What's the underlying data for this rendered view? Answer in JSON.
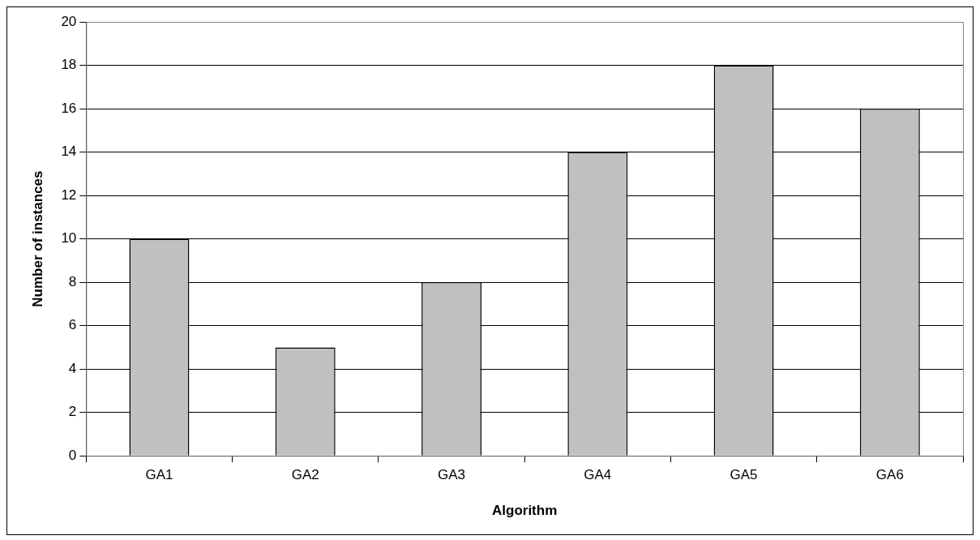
{
  "chart_data": {
    "type": "bar",
    "xlabel": "Algorithm",
    "ylabel": "Number of instances",
    "categories": [
      "GA1",
      "GA2",
      "GA3",
      "GA4",
      "GA5",
      "GA6"
    ],
    "values": [
      10,
      5,
      8,
      14,
      18,
      16
    ],
    "color": "#c0c0c0",
    "ylim": [
      0,
      20
    ],
    "yticks": [
      0,
      2,
      4,
      6,
      8,
      10,
      12,
      14,
      16,
      18,
      20
    ],
    "grid": "y",
    "legend": false
  }
}
